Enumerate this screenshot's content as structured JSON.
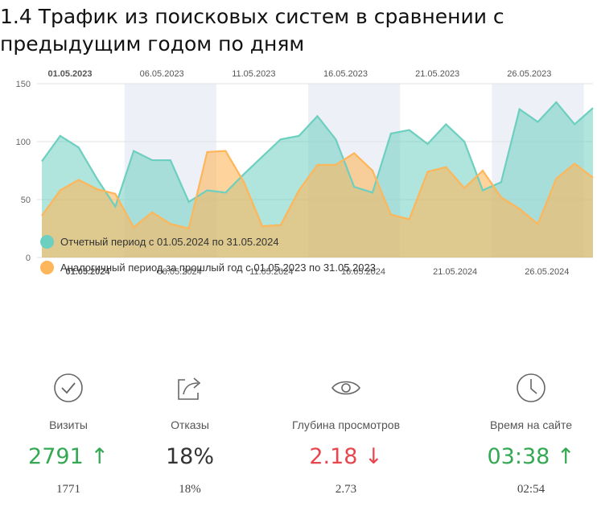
{
  "title": "1.4 Трафик из поисковых систем в сравнении с предыдущим годом по дням",
  "chart_data": {
    "type": "area",
    "x_top_ticks": [
      "01.05.2023",
      "06.05.2023",
      "11.05.2023",
      "16.05.2023",
      "21.05.2023",
      "26.05.2023"
    ],
    "x_bottom_ticks": [
      "01.05.2024",
      "06.05.2024",
      "11.05.2024",
      "16.05.2024",
      "21.05.2024",
      "26.05.2024"
    ],
    "y_ticks": [
      "0",
      "50",
      "100",
      "150"
    ],
    "ylim": [
      0,
      150
    ],
    "grid": true,
    "legend_position": "bottom-left",
    "series": [
      {
        "name": "Отчетный период с 01.05.2024 по 31.05.2024",
        "color": "#6dcfbf",
        "values": [
          83,
          105,
          95,
          68,
          44,
          92,
          84,
          84,
          48,
          58,
          56,
          72,
          87,
          102,
          105,
          122,
          102,
          61,
          56,
          107,
          110,
          98,
          115,
          100,
          58,
          65,
          128,
          117,
          134,
          115,
          129
        ]
      },
      {
        "name": "Аналогичный период за прошлый год с 01.05.2023 по 31.05.2023",
        "color": "#fdb65a",
        "values": [
          36,
          58,
          67,
          59,
          55,
          26,
          39,
          29,
          25,
          91,
          92,
          65,
          27,
          28,
          58,
          80,
          80,
          90,
          75,
          37,
          33,
          74,
          78,
          60,
          75,
          52,
          42,
          29,
          68,
          81,
          69
        ]
      }
    ]
  },
  "metrics": [
    {
      "icon": "check-circle-icon",
      "label": "Визиты",
      "value": "2791",
      "arrow": "↑",
      "trend": "up",
      "prev": "1771"
    },
    {
      "icon": "share-icon",
      "label": "Отказы",
      "value": "18%",
      "arrow": "",
      "trend": "none",
      "prev": "18%"
    },
    {
      "icon": "eye-icon",
      "label": "Глубина просмотров",
      "value": "2.18",
      "arrow": "↓",
      "trend": "down",
      "prev": "2.73"
    },
    {
      "icon": "clock-icon",
      "label": "Время на сайте",
      "value": "03:38",
      "arrow": "↑",
      "trend": "up",
      "prev": "02:54"
    }
  ]
}
